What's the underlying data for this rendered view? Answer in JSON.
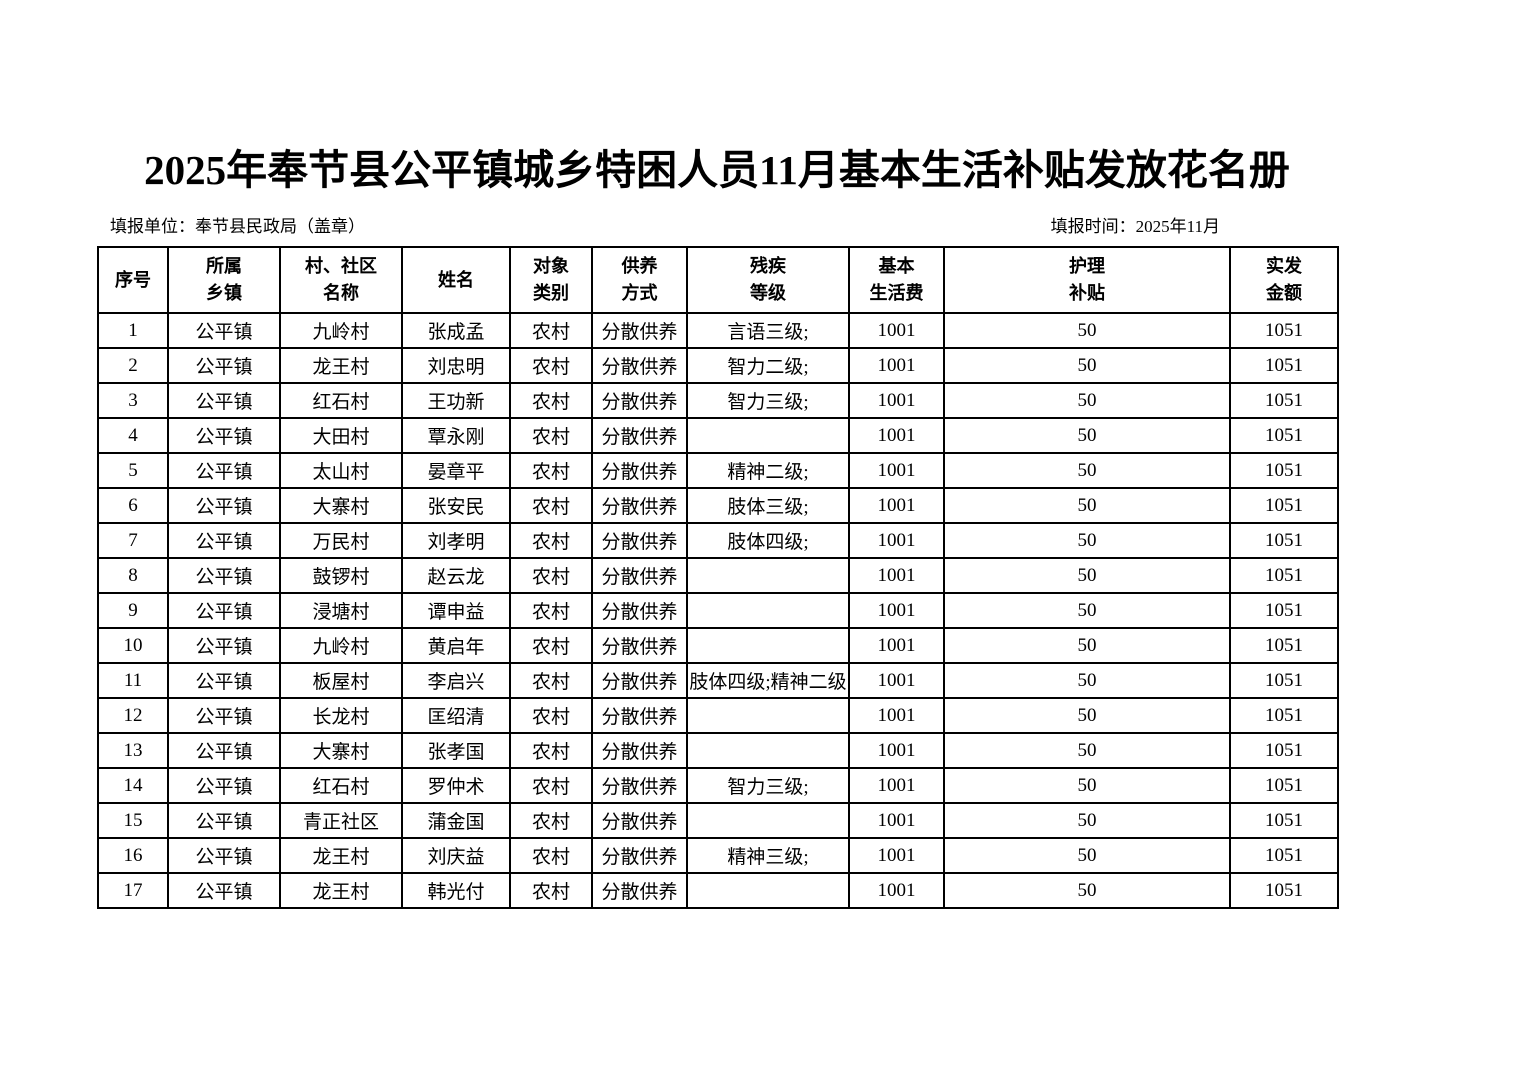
{
  "page": {
    "title": "2025年奉节县公平镇城乡特困人员11月基本生活补贴发放花名册",
    "reporting_unit": "填报单位：奉节县民政局（盖章）",
    "reporting_time": "填报时间：2025年11月"
  },
  "table": {
    "headers": [
      "序号",
      "所属\n乡镇",
      "村、社区\n名称",
      "姓名",
      "对象\n类别",
      "供养\n方式",
      "残疾\n等级",
      "基本\n生活费",
      "护理\n补贴",
      "实发\n金额"
    ],
    "rows": [
      [
        "1",
        "公平镇",
        "九岭村",
        "张成孟",
        "农村",
        "分散供养",
        "言语三级;",
        "1001",
        "50",
        "1051"
      ],
      [
        "2",
        "公平镇",
        "龙王村",
        "刘忠明",
        "农村",
        "分散供养",
        "智力二级;",
        "1001",
        "50",
        "1051"
      ],
      [
        "3",
        "公平镇",
        "红石村",
        "王功新",
        "农村",
        "分散供养",
        "智力三级;",
        "1001",
        "50",
        "1051"
      ],
      [
        "4",
        "公平镇",
        "大田村",
        "覃永刚",
        "农村",
        "分散供养",
        "",
        "1001",
        "50",
        "1051"
      ],
      [
        "5",
        "公平镇",
        "太山村",
        "晏章平",
        "农村",
        "分散供养",
        "精神二级;",
        "1001",
        "50",
        "1051"
      ],
      [
        "6",
        "公平镇",
        "大寨村",
        "张安民",
        "农村",
        "分散供养",
        "肢体三级;",
        "1001",
        "50",
        "1051"
      ],
      [
        "7",
        "公平镇",
        "万民村",
        "刘孝明",
        "农村",
        "分散供养",
        "肢体四级;",
        "1001",
        "50",
        "1051"
      ],
      [
        "8",
        "公平镇",
        "鼓锣村",
        "赵云龙",
        "农村",
        "分散供养",
        "",
        "1001",
        "50",
        "1051"
      ],
      [
        "9",
        "公平镇",
        "浸塘村",
        "谭申益",
        "农村",
        "分散供养",
        "",
        "1001",
        "50",
        "1051"
      ],
      [
        "10",
        "公平镇",
        "九岭村",
        "黄启年",
        "农村",
        "分散供养",
        "",
        "1001",
        "50",
        "1051"
      ],
      [
        "11",
        "公平镇",
        "板屋村",
        "李启兴",
        "农村",
        "分散供养",
        "肢体四级;精神二级",
        "1001",
        "50",
        "1051"
      ],
      [
        "12",
        "公平镇",
        "长龙村",
        "匡绍清",
        "农村",
        "分散供养",
        "",
        "1001",
        "50",
        "1051"
      ],
      [
        "13",
        "公平镇",
        "大寨村",
        "张孝国",
        "农村",
        "分散供养",
        "",
        "1001",
        "50",
        "1051"
      ],
      [
        "14",
        "公平镇",
        "红石村",
        "罗仲术",
        "农村",
        "分散供养",
        "智力三级;",
        "1001",
        "50",
        "1051"
      ],
      [
        "15",
        "公平镇",
        "青正社区",
        "蒲金国",
        "农村",
        "分散供养",
        "",
        "1001",
        "50",
        "1051"
      ],
      [
        "16",
        "公平镇",
        "龙王村",
        "刘庆益",
        "农村",
        "分散供养",
        "精神三级;",
        "1001",
        "50",
        "1051"
      ],
      [
        "17",
        "公平镇",
        "龙王村",
        "韩光付",
        "农村",
        "分散供养",
        "",
        "1001",
        "50",
        "1051"
      ]
    ]
  }
}
